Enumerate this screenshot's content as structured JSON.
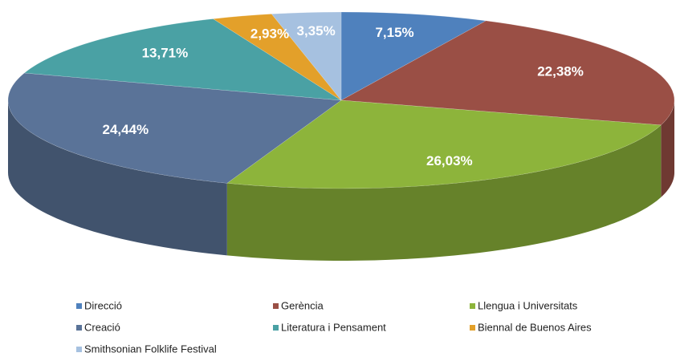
{
  "chart_data": {
    "type": "pie",
    "categories": [
      "Direcció",
      "Gerència",
      "Llengua i Universitats",
      "Creació",
      "Literatura i Pensament",
      "Biennal de Buenos Aires",
      "Smithsonian Folklife Festival"
    ],
    "values": [
      7.15,
      22.38,
      26.03,
      24.44,
      13.71,
      2.93,
      3.35
    ],
    "value_labels": [
      "7,15%",
      "22,38%",
      "26,03%",
      "24,44%",
      "13,71%",
      "2,93%",
      "3,35%"
    ],
    "colors": [
      "#4f81bd",
      "#9a4f45",
      "#8db43b",
      "#5a7398",
      "#4aa1a4",
      "#e3a02a",
      "#a6c1e0"
    ],
    "legend": "bottom"
  }
}
